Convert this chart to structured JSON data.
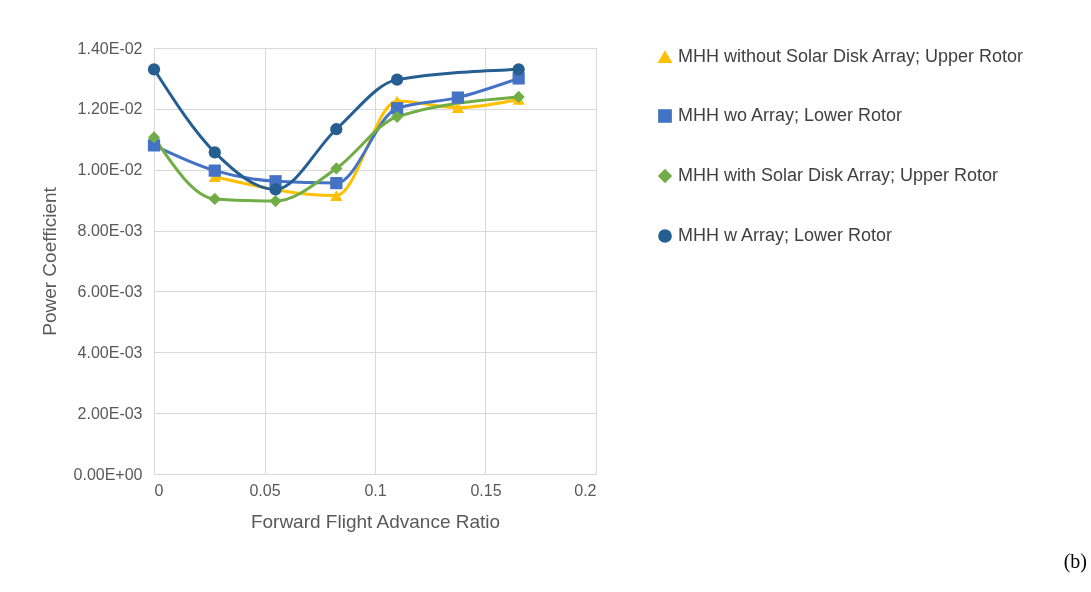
{
  "chart_data": {
    "type": "line",
    "xlabel": "Forward Flight Advance Ratio",
    "ylabel": "Power Coefficient",
    "x": [
      0,
      0.0275,
      0.055,
      0.0825,
      0.11,
      0.1375,
      0.165
    ],
    "series": [
      {
        "name": "MHH without Solar Disk Array; Upper Rotor",
        "color": "#ffc000",
        "marker": "triangle",
        "values": [
          null,
          0.00977,
          null,
          0.00915,
          0.01226,
          0.01204,
          0.01231
        ]
      },
      {
        "name": "MHH wo Array; Lower Rotor",
        "color": "#4472c4",
        "marker": "square",
        "values": [
          0.0108,
          0.00997,
          0.00962,
          0.00956,
          0.01202,
          0.01237,
          0.013
        ]
      },
      {
        "name": "MHH with Solar Disk Array; Upper Rotor",
        "color": "#70ad47",
        "marker": "diamond",
        "values": [
          0.01106,
          0.00904,
          0.00897,
          0.01004,
          0.01174,
          null,
          0.01239
        ]
      },
      {
        "name": "MHH w Array; Lower Rotor",
        "color": "#255e91",
        "marker": "circle",
        "values": [
          0.0133,
          0.01057,
          0.00935,
          0.01133,
          0.01296,
          null,
          0.0133
        ]
      }
    ],
    "xlim": [
      0,
      0.2
    ],
    "xticks": [
      0,
      0.05,
      0.1,
      0.15,
      0.2
    ],
    "ylim": [
      0,
      0.014
    ],
    "yticks": [
      {
        "value": 0,
        "label": "0.00E+00"
      },
      {
        "value": 0.002,
        "label": "2.00E-03"
      },
      {
        "value": 0.004,
        "label": "4.00E-03"
      },
      {
        "value": 0.006,
        "label": "6.00E-03"
      },
      {
        "value": 0.008,
        "label": "8.00E-03"
      },
      {
        "value": 0.01,
        "label": "1.00E-02"
      },
      {
        "value": 0.012,
        "label": "1.20E-02"
      },
      {
        "value": 0.014,
        "label": "1.40E-02"
      }
    ],
    "grid": true,
    "legend": "right",
    "line_style": "solid",
    "annotations": [
      "(b)"
    ]
  }
}
